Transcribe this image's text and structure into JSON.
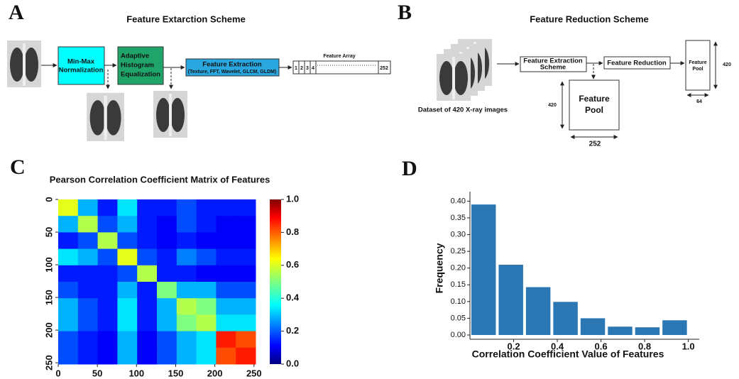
{
  "panel_labels": [
    "A",
    "B",
    "C",
    "D"
  ],
  "scheme_a": {
    "title": "Feature Extarction Scheme",
    "normalization": [
      "Min-Max",
      "Normalization"
    ],
    "equalization": [
      "Adaptive",
      "Histogram",
      "Equalization"
    ],
    "extraction": [
      "Feature Extraction",
      "(Texture, FFT, Wavelet, GLCM, GLDM)"
    ],
    "array_title": "Feature Array",
    "array_cells": [
      "1",
      "2",
      "3",
      "4",
      "252"
    ]
  },
  "scheme_b": {
    "title": "Feature Reduction Scheme",
    "dataset": "Dataset of 420 X-ray images",
    "extraction": [
      "Feature Extraction",
      "Scheme"
    ],
    "reduction": "Feature Reduction",
    "pool_small": [
      "Feature",
      "Pool"
    ],
    "pool_small_height": "420",
    "pool_small_width": "64",
    "pool_large": [
      "Feature",
      "Pool"
    ],
    "pool_large_height": "420",
    "pool_large_width": "252"
  },
  "chart_data": [
    {
      "type": "heatmap",
      "title": "Pearson Correlation Coefficient Matrix of Features",
      "values": [
        [
          0.6,
          0.3,
          0.15,
          0.35,
          0.15,
          0.15,
          0.2,
          0.15,
          0.15,
          0.15
        ],
        [
          0.3,
          0.55,
          0.2,
          0.3,
          0.15,
          0.12,
          0.2,
          0.15,
          0.12,
          0.12
        ],
        [
          0.15,
          0.2,
          0.55,
          0.2,
          0.15,
          0.12,
          0.15,
          0.12,
          0.12,
          0.12
        ],
        [
          0.35,
          0.3,
          0.2,
          0.6,
          0.2,
          0.15,
          0.25,
          0.2,
          0.15,
          0.15
        ],
        [
          0.15,
          0.15,
          0.15,
          0.2,
          0.55,
          0.15,
          0.15,
          0.12,
          0.12,
          0.12
        ],
        [
          0.2,
          0.15,
          0.15,
          0.3,
          0.15,
          0.5,
          0.3,
          0.3,
          0.2,
          0.2
        ],
        [
          0.3,
          0.2,
          0.15,
          0.35,
          0.15,
          0.3,
          0.55,
          0.5,
          0.3,
          0.3
        ],
        [
          0.3,
          0.2,
          0.15,
          0.35,
          0.15,
          0.3,
          0.5,
          0.55,
          0.35,
          0.35
        ],
        [
          0.2,
          0.15,
          0.12,
          0.3,
          0.12,
          0.2,
          0.3,
          0.35,
          0.85,
          0.8
        ],
        [
          0.2,
          0.15,
          0.12,
          0.3,
          0.12,
          0.2,
          0.3,
          0.35,
          0.8,
          0.85
        ]
      ],
      "xlim": [
        0,
        252
      ],
      "ylim": [
        0,
        252
      ],
      "xticks": [
        0,
        50,
        100,
        150,
        200,
        250
      ],
      "yticks": [
        0,
        50,
        100,
        150,
        200,
        250
      ],
      "colorbar_lim": [
        0,
        1
      ],
      "colorbar_ticks": [
        {
          "value": 0,
          "label": "0.0"
        },
        0.2,
        0.4,
        0.6,
        0.8,
        {
          "value": 1,
          "label": "1.0"
        }
      ],
      "colormap": "jet"
    },
    {
      "type": "histogram",
      "x_label": "Correlation Coefficient Value of Features",
      "y_label": "Frequency",
      "bins": [
        0,
        0.125,
        0.25,
        0.375,
        0.5,
        0.625,
        0.75,
        0.875,
        1.0
      ],
      "values": [
        0.39,
        0.21,
        0.143,
        0.099,
        0.05,
        0.025,
        0.023,
        0.044
      ],
      "color": "#2a77b4",
      "xlim": [
        0,
        1.05
      ],
      "ylim": [
        0,
        0.42
      ],
      "xticks": [
        0.2,
        0.4,
        0.6,
        0.8,
        {
          "value": 1,
          "label": "1.0"
        }
      ],
      "yticks": [
        {
          "value": 0,
          "label": "0.00"
        },
        {
          "value": 0.05,
          "label": "0.05"
        },
        {
          "value": 0.1,
          "label": "0.10"
        },
        {
          "value": 0.15,
          "label": "0.15"
        },
        {
          "value": 0.2,
          "label": "0.20"
        },
        {
          "value": 0.25,
          "label": "0.25"
        },
        {
          "value": 0.3,
          "label": "0.30"
        },
        {
          "value": 0.35,
          "label": "0.35"
        },
        {
          "value": 0.4,
          "label": "0.40"
        }
      ]
    }
  ]
}
